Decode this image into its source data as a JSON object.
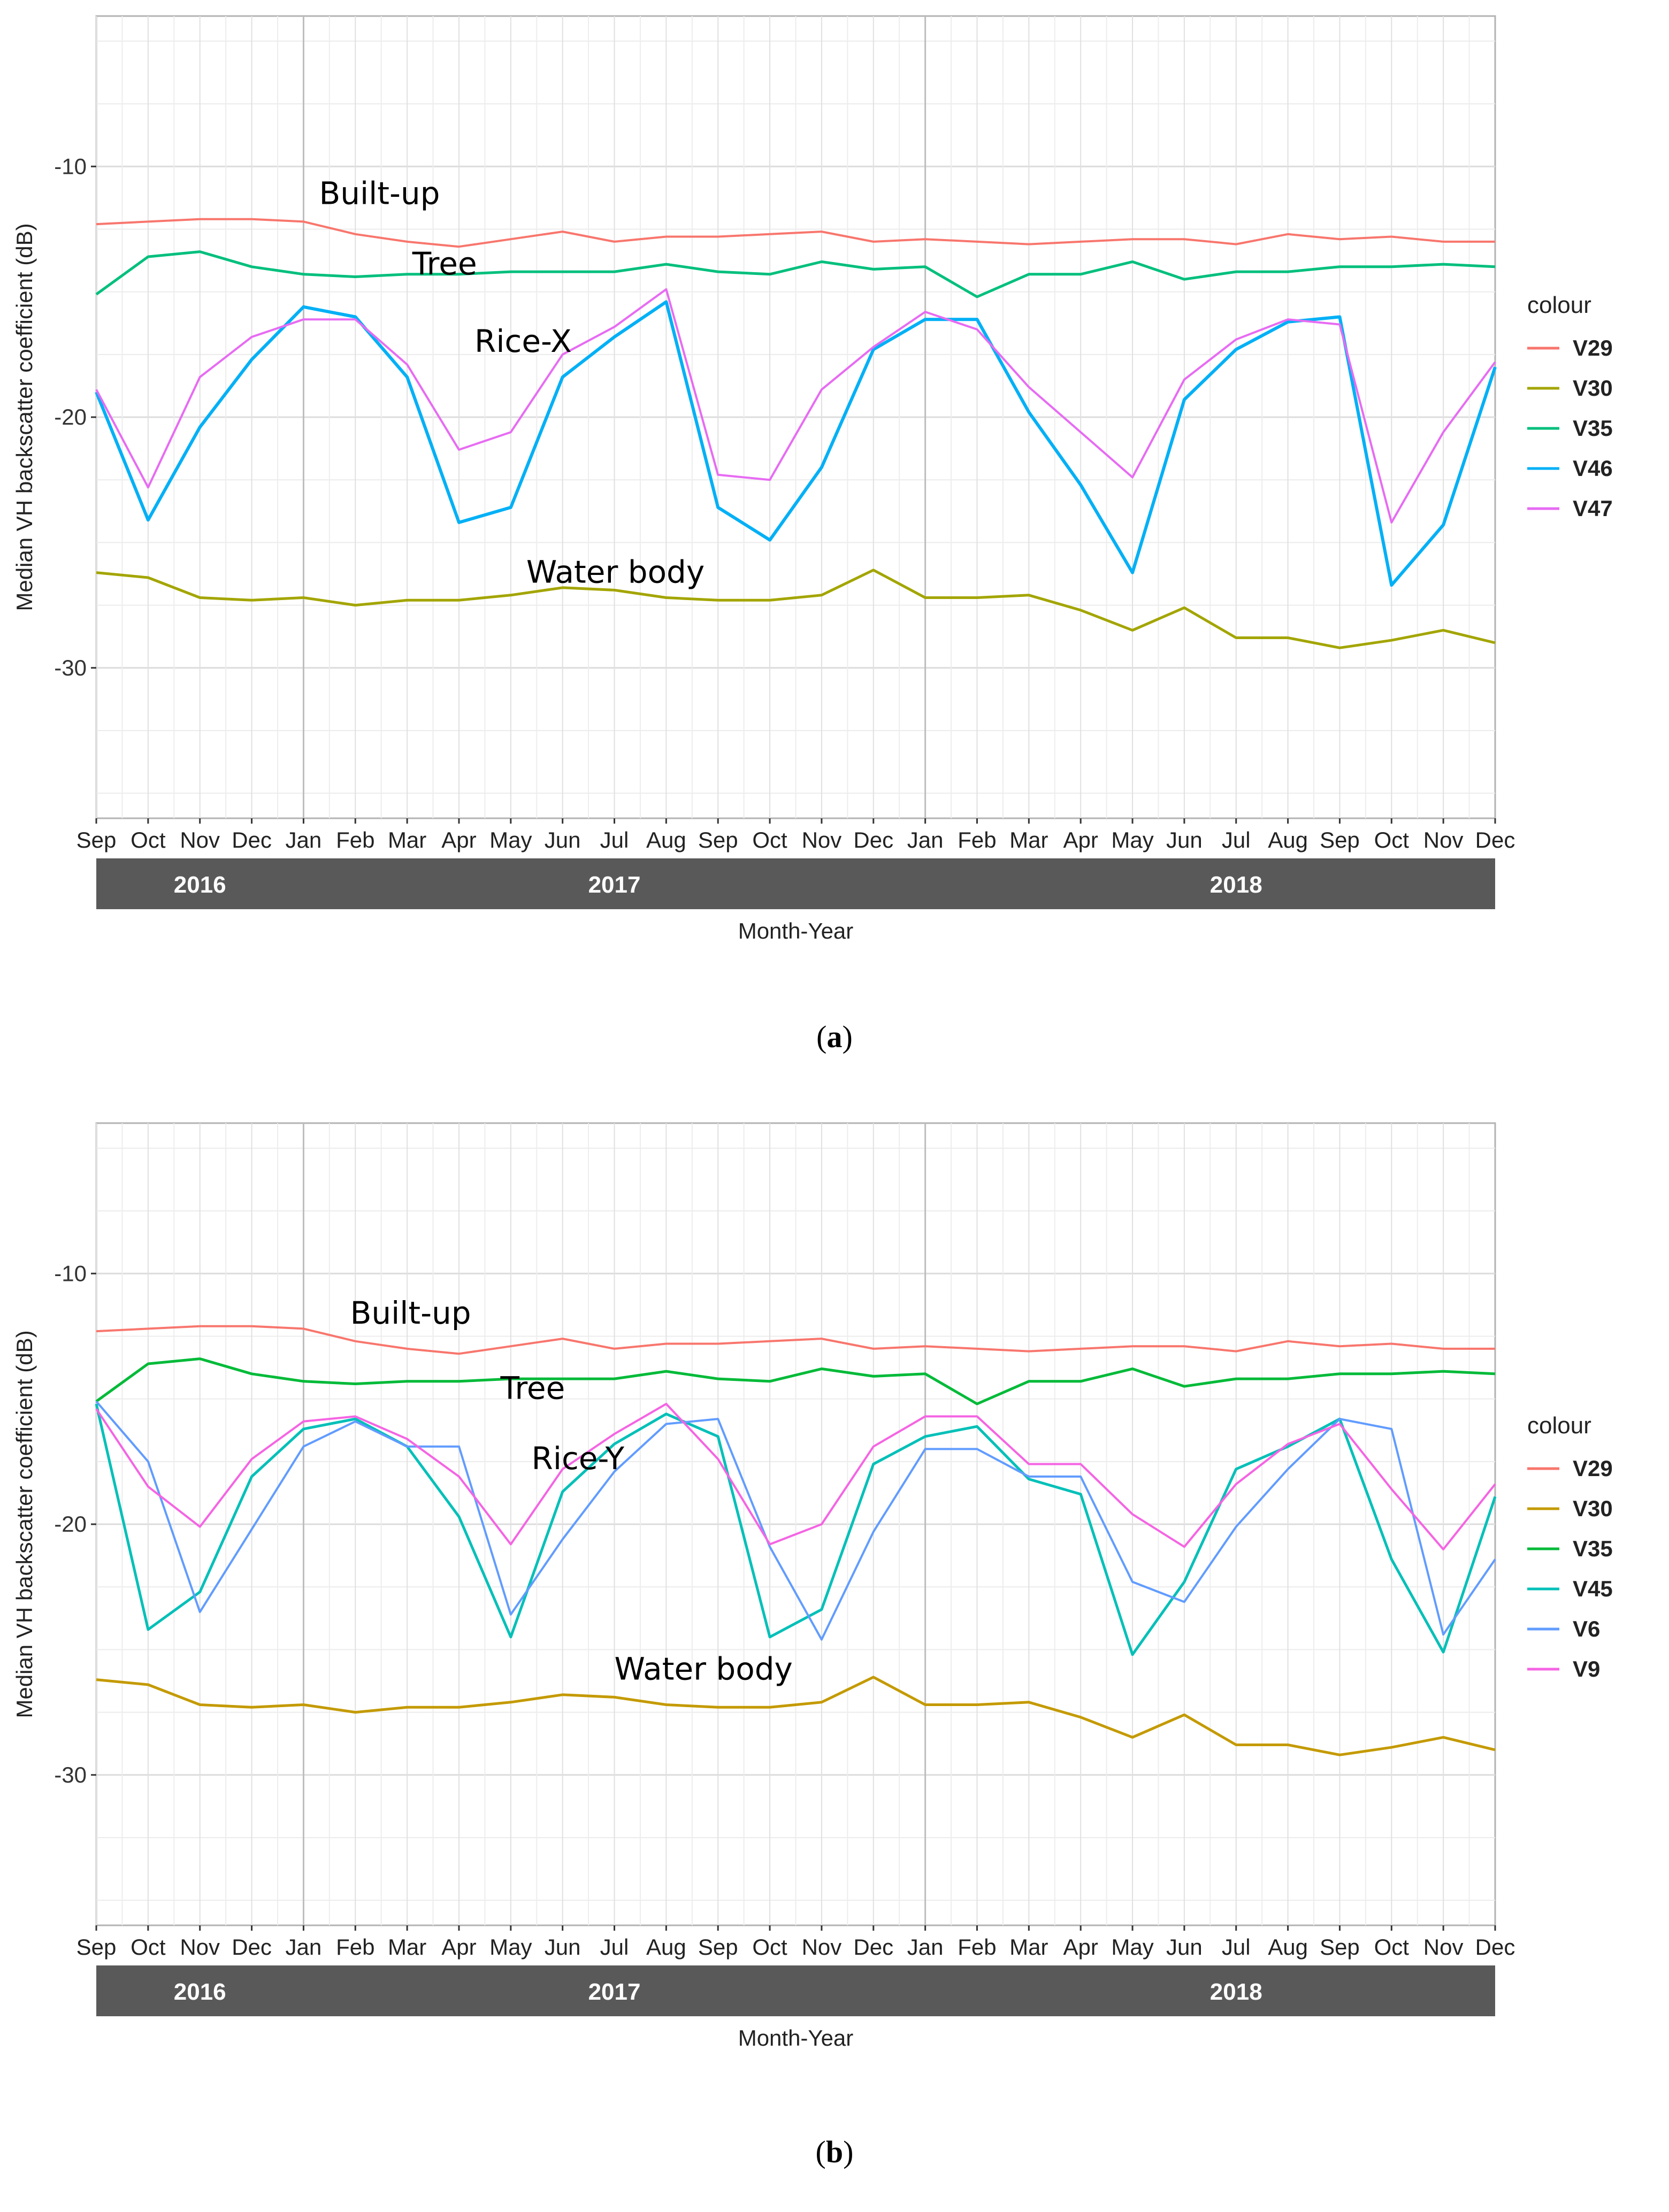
{
  "chart_data": [
    {
      "type": "line",
      "panel_label": "a",
      "xlabel": "Month-Year",
      "ylabel": "Median VH backscatter coefficient (dB)",
      "ylim": [
        -36,
        -4
      ],
      "yticks": [
        -10,
        -20,
        -30
      ],
      "x_labels": [
        "Sep",
        "Oct",
        "Nov",
        "Dec",
        "Jan",
        "Feb",
        "Mar",
        "Apr",
        "May",
        "Jun",
        "Jul",
        "Aug",
        "Sep",
        "Oct",
        "Nov",
        "Dec",
        "Jan",
        "Feb",
        "Mar",
        "Apr",
        "May",
        "Jun",
        "Jul",
        "Aug",
        "Sep",
        "Oct",
        "Nov",
        "Dec"
      ],
      "x_positions": [
        0,
        1,
        2,
        3,
        4,
        5,
        6,
        7,
        8,
        9,
        10,
        11,
        12,
        13,
        14,
        15,
        16,
        17,
        18,
        19,
        20,
        21,
        22,
        23,
        24,
        25,
        26,
        27
      ],
      "year_dividers": [
        4,
        16
      ],
      "year_bands": [
        {
          "label": "2016",
          "center": 2
        },
        {
          "label": "2017",
          "center": 10
        },
        {
          "label": "2018",
          "center": 22
        }
      ],
      "legend_title": "colour",
      "series": [
        {
          "name": "V29",
          "color": "#F8766D",
          "width": 4,
          "values": [
            -12.3,
            -12.2,
            -12.1,
            -12.1,
            -12.2,
            -12.7,
            -13.0,
            -13.2,
            -12.9,
            -12.6,
            -13.0,
            -12.8,
            -12.8,
            -12.7,
            -12.6,
            -13.0,
            -12.9,
            -13.0,
            -13.1,
            -13.0,
            -12.9,
            -12.9,
            -13.1,
            -12.7,
            -12.9,
            -12.8,
            -13.0,
            -13.0
          ]
        },
        {
          "name": "V30",
          "color": "#A3A500",
          "width": 5,
          "values": [
            -26.2,
            -26.4,
            -27.2,
            -27.3,
            -27.2,
            -27.5,
            -27.3,
            -27.3,
            -27.1,
            -26.8,
            -26.9,
            -27.2,
            -27.3,
            -27.3,
            -27.1,
            -26.1,
            -27.2,
            -27.2,
            -27.1,
            -27.7,
            -28.5,
            -27.6,
            -28.8,
            -28.8,
            -29.2,
            -28.9,
            -28.5,
            -29.0
          ]
        },
        {
          "name": "V35",
          "color": "#00BF7D",
          "width": 5,
          "values": [
            -15.1,
            -13.6,
            -13.4,
            -14.0,
            -14.3,
            -14.4,
            -14.3,
            -14.3,
            -14.2,
            -14.2,
            -14.2,
            -13.9,
            -14.2,
            -14.3,
            -13.8,
            -14.1,
            -14.0,
            -15.2,
            -14.3,
            -14.3,
            -13.8,
            -14.5,
            -14.2,
            -14.2,
            -14.0,
            -14.0,
            -13.9,
            -14.0
          ]
        },
        {
          "name": "V46",
          "color": "#00B0F6",
          "width": 6,
          "values": [
            -19.0,
            -24.1,
            -20.4,
            -17.7,
            -15.6,
            -16.0,
            -18.4,
            -24.2,
            -23.6,
            -18.4,
            -16.8,
            -15.4,
            -23.6,
            -24.9,
            -22.0,
            -17.3,
            -16.1,
            -16.1,
            -19.8,
            -22.7,
            -26.2,
            -19.3,
            -17.3,
            -16.2,
            -16.0,
            -26.7,
            -24.3,
            -18.0
          ]
        },
        {
          "name": "V47",
          "color": "#E76BF3",
          "width": 4,
          "values": [
            -18.9,
            -22.8,
            -18.4,
            -16.8,
            -16.1,
            -16.1,
            -17.9,
            -21.3,
            -20.6,
            -17.5,
            -16.4,
            -14.9,
            -22.3,
            -22.5,
            -18.9,
            -17.2,
            -15.8,
            -16.5,
            -18.8,
            -20.6,
            -22.4,
            -18.5,
            -16.9,
            -16.1,
            -16.3,
            -24.2,
            -20.6,
            -17.8
          ]
        }
      ],
      "annotations": [
        {
          "text": "Built-up",
          "x": 4.3,
          "y": -11.5
        },
        {
          "text": "Tree",
          "x": 6.1,
          "y": -14.3
        },
        {
          "text": "Rice-X",
          "x": 7.3,
          "y": -17.4
        },
        {
          "text": "Water body",
          "x": 8.3,
          "y": -26.6
        }
      ]
    },
    {
      "type": "line",
      "panel_label": "b",
      "xlabel": "Month-Year",
      "ylabel": "Median VH backscatter coefficient (dB)",
      "ylim": [
        -36,
        -4
      ],
      "yticks": [
        -10,
        -20,
        -30
      ],
      "x_labels": [
        "Sep",
        "Oct",
        "Nov",
        "Dec",
        "Jan",
        "Feb",
        "Mar",
        "Apr",
        "May",
        "Jun",
        "Jul",
        "Aug",
        "Sep",
        "Oct",
        "Nov",
        "Dec",
        "Jan",
        "Feb",
        "Mar",
        "Apr",
        "May",
        "Jun",
        "Jul",
        "Aug",
        "Sep",
        "Oct",
        "Nov",
        "Dec"
      ],
      "x_positions": [
        0,
        1,
        2,
        3,
        4,
        5,
        6,
        7,
        8,
        9,
        10,
        11,
        12,
        13,
        14,
        15,
        16,
        17,
        18,
        19,
        20,
        21,
        22,
        23,
        24,
        25,
        26,
        27
      ],
      "year_dividers": [
        4,
        16
      ],
      "year_bands": [
        {
          "label": "2016",
          "center": 2
        },
        {
          "label": "2017",
          "center": 10
        },
        {
          "label": "2018",
          "center": 22
        }
      ],
      "legend_title": "colour",
      "series": [
        {
          "name": "V29",
          "color": "#F8766D",
          "width": 4,
          "values": [
            -12.3,
            -12.2,
            -12.1,
            -12.1,
            -12.2,
            -12.7,
            -13.0,
            -13.2,
            -12.9,
            -12.6,
            -13.0,
            -12.8,
            -12.8,
            -12.7,
            -12.6,
            -13.0,
            -12.9,
            -13.0,
            -13.1,
            -13.0,
            -12.9,
            -12.9,
            -13.1,
            -12.7,
            -12.9,
            -12.8,
            -13.0,
            -13.0
          ]
        },
        {
          "name": "V30",
          "color": "#C49A00",
          "width": 5,
          "values": [
            -26.2,
            -26.4,
            -27.2,
            -27.3,
            -27.2,
            -27.5,
            -27.3,
            -27.3,
            -27.1,
            -26.8,
            -26.9,
            -27.2,
            -27.3,
            -27.3,
            -27.1,
            -26.1,
            -27.2,
            -27.2,
            -27.1,
            -27.7,
            -28.5,
            -27.6,
            -28.8,
            -28.8,
            -29.2,
            -28.9,
            -28.5,
            -29.0
          ]
        },
        {
          "name": "V35",
          "color": "#00BA38",
          "width": 5,
          "values": [
            -15.1,
            -13.6,
            -13.4,
            -14.0,
            -14.3,
            -14.4,
            -14.3,
            -14.3,
            -14.2,
            -14.2,
            -14.2,
            -13.9,
            -14.2,
            -14.3,
            -13.8,
            -14.1,
            -14.0,
            -15.2,
            -14.3,
            -14.3,
            -13.8,
            -14.5,
            -14.2,
            -14.2,
            -14.0,
            -14.0,
            -13.9,
            -14.0
          ]
        },
        {
          "name": "V45",
          "color": "#00C0B8",
          "width": 5,
          "values": [
            -15.2,
            -24.2,
            -22.7,
            -18.1,
            -16.2,
            -15.8,
            -16.9,
            -19.7,
            -24.5,
            -18.7,
            -16.8,
            -15.6,
            -16.5,
            -24.5,
            -23.4,
            -17.6,
            -16.5,
            -16.1,
            -18.2,
            -18.8,
            -25.2,
            -22.3,
            -17.8,
            -16.9,
            -15.8,
            -21.4,
            -25.1,
            -18.9
          ]
        },
        {
          "name": "V6",
          "color": "#619CFF",
          "width": 4,
          "values": [
            -15.1,
            -17.5,
            -23.5,
            -20.2,
            -16.9,
            -15.9,
            -16.9,
            -16.9,
            -23.6,
            -20.6,
            -17.9,
            -16.0,
            -15.8,
            -20.9,
            -24.6,
            -20.3,
            -17.0,
            -17.0,
            -18.1,
            -18.1,
            -22.3,
            -23.1,
            -20.1,
            -17.8,
            -15.8,
            -16.2,
            -24.4,
            -21.4
          ]
        },
        {
          "name": "V9",
          "color": "#F564E3",
          "width": 4,
          "values": [
            -15.4,
            -18.5,
            -20.1,
            -17.4,
            -15.9,
            -15.7,
            -16.6,
            -18.1,
            -20.8,
            -17.8,
            -16.4,
            -15.2,
            -17.4,
            -20.8,
            -20.0,
            -16.9,
            -15.7,
            -15.7,
            -17.6,
            -17.6,
            -19.6,
            -20.9,
            -18.4,
            -16.8,
            -16.0,
            -18.6,
            -21.0,
            -18.4
          ]
        }
      ],
      "annotations": [
        {
          "text": "Built-up",
          "x": 4.9,
          "y": -12.0
        },
        {
          "text": "Tree",
          "x": 7.8,
          "y": -15.0
        },
        {
          "text": "Rice-Y",
          "x": 8.4,
          "y": -17.8
        },
        {
          "text": "Water body",
          "x": 10.0,
          "y": -26.2
        }
      ]
    }
  ]
}
